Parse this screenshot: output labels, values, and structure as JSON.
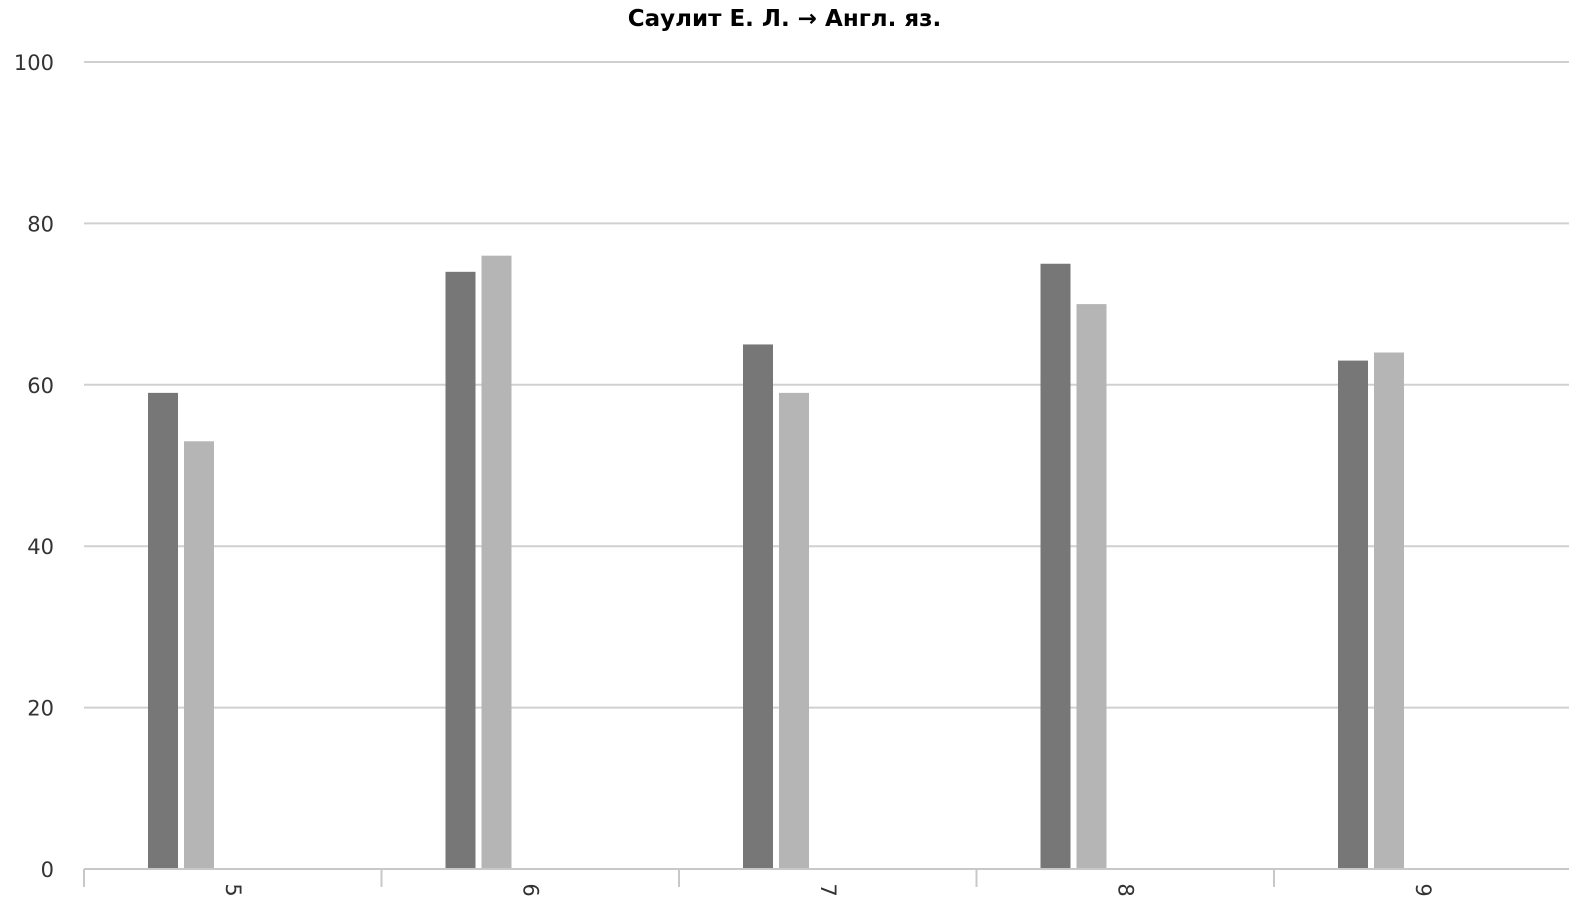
{
  "chart_data": {
    "type": "bar",
    "title": "Саулит Е. Л. → Англ. яз.",
    "xlabel": "",
    "ylabel": "",
    "categories": [
      "5",
      "6",
      "7",
      "8",
      "9"
    ],
    "series": [
      {
        "values": [
          59,
          74,
          65,
          75,
          63
        ],
        "color": "#777777"
      },
      {
        "values": [
          53,
          76,
          59,
          70,
          64
        ],
        "color": "#b5b5b5"
      }
    ],
    "ylim": [
      0,
      100
    ],
    "yticks": [
      "0",
      "20",
      "40",
      "60",
      "80",
      "100"
    ],
    "grid": true,
    "legend": "none",
    "colors": {
      "grid": "#d0d0d0",
      "axis": "#c8c8c8",
      "tick_label": "#333333"
    }
  }
}
